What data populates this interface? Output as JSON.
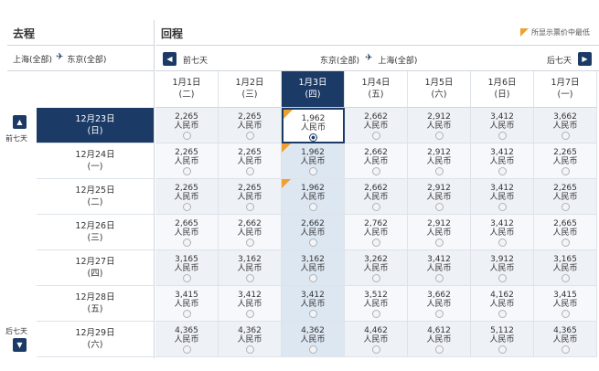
{
  "outbound": {
    "title": "去程",
    "from": "上海(全部)",
    "to": "东京(全部)"
  },
  "return": {
    "title": "回程",
    "from": "东京(全部)",
    "to": "上海(全部)",
    "prev_label": "前七天",
    "next_label": "后七天"
  },
  "legend": "所显示票价中最低",
  "side": {
    "prev_label": "前七天",
    "next_label": "后七天"
  },
  "currency": "人民币",
  "return_days": [
    {
      "date": "1月1日",
      "weekday": "(二)"
    },
    {
      "date": "1月2日",
      "weekday": "(三)"
    },
    {
      "date": "1月3日",
      "weekday": "(四)"
    },
    {
      "date": "1月4日",
      "weekday": "(五)"
    },
    {
      "date": "1月5日",
      "weekday": "(六)"
    },
    {
      "date": "1月6日",
      "weekday": "(日)"
    },
    {
      "date": "1月7日",
      "weekday": "(一)"
    }
  ],
  "rows": [
    {
      "date": "12月23日",
      "weekday": "(日)",
      "prices": [
        "2,265",
        "2,265",
        "1,962",
        "2,662",
        "2,912",
        "3,412",
        "3,662"
      ]
    },
    {
      "date": "12月24日",
      "weekday": "(一)",
      "prices": [
        "2,265",
        "2,265",
        "1,962",
        "2,662",
        "2,912",
        "3,412",
        "2,265"
      ]
    },
    {
      "date": "12月25日",
      "weekday": "(二)",
      "prices": [
        "2,265",
        "2,265",
        "1,962",
        "2,662",
        "2,912",
        "3,412",
        "2,265"
      ]
    },
    {
      "date": "12月26日",
      "weekday": "(三)",
      "prices": [
        "2,665",
        "2,662",
        "2,662",
        "2,762",
        "2,912",
        "3,412",
        "2,665"
      ]
    },
    {
      "date": "12月27日",
      "weekday": "(四)",
      "prices": [
        "3,165",
        "3,162",
        "3,162",
        "3,262",
        "3,412",
        "3,912",
        "3,165"
      ]
    },
    {
      "date": "12月28日",
      "weekday": "(五)",
      "prices": [
        "3,415",
        "3,412",
        "3,412",
        "3,512",
        "3,662",
        "4,162",
        "3,415"
      ]
    },
    {
      "date": "12月29日",
      "weekday": "(六)",
      "prices": [
        "4,365",
        "4,362",
        "4,362",
        "4,462",
        "4,612",
        "5,112",
        "4,365"
      ]
    }
  ],
  "selected_row": 0,
  "selected_col": 2,
  "cheapest_cells": [
    [
      0,
      2
    ],
    [
      1,
      2
    ],
    [
      2,
      2
    ]
  ],
  "colors": {
    "navy": "#1b3a66",
    "accent": "#f0a030"
  }
}
